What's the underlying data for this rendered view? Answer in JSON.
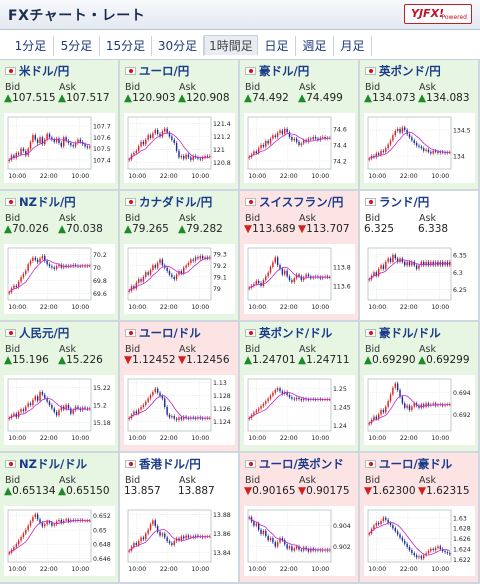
{
  "header": {
    "title": "FXチャート・レート",
    "logo": "YJFX!",
    "logo_sub": "Powered"
  },
  "tabs": [
    "1分足",
    "5分足",
    "15分足",
    "30分足",
    "1時間足",
    "日足",
    "週足",
    "月足"
  ],
  "active_tab": "1時間足",
  "labels": {
    "bid": "Bid",
    "ask": "Ask"
  },
  "pairs": [
    {
      "name": "米ドル/円",
      "bid": "107.515",
      "ask": "107.517",
      "direction": "up",
      "bid_arrow": "▲",
      "ask_arrow": "▲"
    },
    {
      "name": "ユーロ/円",
      "bid": "120.903",
      "ask": "120.908",
      "direction": "up",
      "bid_arrow": "▲",
      "ask_arrow": "▲"
    },
    {
      "name": "豪ドル/円",
      "bid": "74.492",
      "ask": "74.499",
      "direction": "up",
      "bid_arrow": "▲",
      "ask_arrow": "▲"
    },
    {
      "name": "英ポンド/円",
      "bid": "134.073",
      "ask": "134.083",
      "direction": "up",
      "bid_arrow": "▲",
      "ask_arrow": "▲"
    },
    {
      "name": "NZドル/円",
      "bid": "70.026",
      "ask": "70.038",
      "direction": "up",
      "bid_arrow": "▲",
      "ask_arrow": "▲"
    },
    {
      "name": "カナダドル/円",
      "bid": "79.265",
      "ask": "79.282",
      "direction": "up",
      "bid_arrow": "▲",
      "ask_arrow": "▲"
    },
    {
      "name": "スイスフラン/円",
      "bid": "113.689",
      "ask": "113.707",
      "direction": "down",
      "bid_arrow": "▼",
      "ask_arrow": "▼"
    },
    {
      "name": "ランド/円",
      "bid": "6.325",
      "ask": "6.338",
      "direction": "flat",
      "bid_arrow": "",
      "ask_arrow": ""
    },
    {
      "name": "人民元/円",
      "bid": "15.196",
      "ask": "15.226",
      "direction": "up",
      "bid_arrow": "▲",
      "ask_arrow": "▲"
    },
    {
      "name": "ユーロ/ドル",
      "bid": "1.12452",
      "ask": "1.12456",
      "direction": "down",
      "bid_arrow": "▼",
      "ask_arrow": "▼"
    },
    {
      "name": "英ポンド/ドル",
      "bid": "1.24701",
      "ask": "1.24711",
      "direction": "up",
      "bid_arrow": "▲",
      "ask_arrow": "▲"
    },
    {
      "name": "豪ドル/ドル",
      "bid": "0.69290",
      "ask": "0.69299",
      "direction": "up",
      "bid_arrow": "▲",
      "ask_arrow": "▲"
    },
    {
      "name": "NZドル/ドル",
      "bid": "0.65134",
      "ask": "0.65150",
      "direction": "up",
      "bid_arrow": "▲",
      "ask_arrow": "▲"
    },
    {
      "name": "香港ドル/円",
      "bid": "13.857",
      "ask": "13.887",
      "direction": "flat",
      "bid_arrow": "",
      "ask_arrow": ""
    },
    {
      "name": "ユーロ/英ポンド",
      "bid": "0.90165",
      "ask": "0.90175",
      "direction": "down",
      "bid_arrow": "▼",
      "ask_arrow": "▼"
    },
    {
      "name": "ユーロ/豪ドル",
      "bid": "1.62300",
      "ask": "1.62315",
      "direction": "down",
      "bid_arrow": "▼",
      "ask_arrow": "▼"
    }
  ],
  "colors": {
    "up_bg": "#e6f6e2",
    "down_bg": "#fde4e4",
    "flat_bg": "#ffffff",
    "candle_up": "#d81e1e",
    "candle_down": "#1a2a9a",
    "ma_line": "#c02ad0"
  },
  "chart_data": [
    {
      "type": "candlestick",
      "title": "米ドル/円",
      "x_ticks": [
        "10:00",
        "22:00",
        "10:00"
      ],
      "y_ticks": [
        "107.7",
        "107.6",
        "107.5",
        "107.4"
      ],
      "ylim": [
        107.32,
        107.78
      ],
      "closes": [
        107.4,
        107.44,
        107.42,
        107.46,
        107.45,
        107.5,
        107.48,
        107.44,
        107.5,
        107.56,
        107.62,
        107.58,
        107.55,
        107.6,
        107.54,
        107.58,
        107.63,
        107.6,
        107.58,
        107.56,
        107.59,
        107.55,
        107.52,
        107.6,
        107.57,
        107.55,
        107.53,
        107.52,
        107.55,
        107.58,
        107.56,
        107.54,
        107.52,
        107.51,
        107.52
      ]
    },
    {
      "type": "candlestick",
      "title": "ユーロ/円",
      "x_ticks": [
        "10:00",
        "22:00",
        "10:00"
      ],
      "y_ticks": [
        "121.4",
        "121.2",
        "121",
        "120.8"
      ],
      "ylim": [
        120.7,
        121.5
      ],
      "closes": [
        120.85,
        120.92,
        120.95,
        120.98,
        121.05,
        121.12,
        121.08,
        121.15,
        121.22,
        121.18,
        121.25,
        121.3,
        121.24,
        121.2,
        121.28,
        121.32,
        121.26,
        121.2,
        121.15,
        121.1,
        120.98,
        120.88,
        120.9,
        120.86,
        120.92,
        120.88,
        120.84,
        120.9,
        120.88,
        120.86,
        120.85,
        120.88,
        120.9,
        120.89,
        120.9
      ]
    },
    {
      "type": "candlestick",
      "title": "豪ドル/円",
      "x_ticks": [
        "10:00",
        "22:00",
        "10:00"
      ],
      "y_ticks": [
        "74.6",
        "74.4",
        "74.2"
      ],
      "ylim": [
        74.1,
        74.75
      ],
      "closes": [
        74.25,
        74.28,
        74.32,
        74.3,
        74.36,
        74.4,
        74.38,
        74.45,
        74.42,
        74.48,
        74.52,
        74.5,
        74.55,
        74.58,
        74.54,
        74.6,
        74.56,
        74.5,
        74.46,
        74.48,
        74.44,
        74.4,
        74.42,
        74.46,
        74.44,
        74.48,
        74.47,
        74.5,
        74.48,
        74.46,
        74.49,
        74.5,
        74.48,
        74.49,
        74.49
      ]
    },
    {
      "type": "candlestick",
      "title": "英ポンド/円",
      "x_ticks": [
        "10:00",
        "22:00",
        "10:00"
      ],
      "y_ticks": [
        "134.5",
        "134"
      ],
      "ylim": [
        133.75,
        134.75
      ],
      "closes": [
        133.95,
        134.0,
        133.98,
        134.05,
        134.02,
        134.1,
        134.08,
        134.15,
        134.22,
        134.3,
        134.4,
        134.48,
        134.52,
        134.45,
        134.55,
        134.5,
        134.42,
        134.36,
        134.3,
        134.25,
        134.2,
        134.18,
        134.15,
        134.1,
        134.12,
        134.08,
        134.05,
        134.1,
        134.08,
        134.06,
        134.08,
        134.07,
        134.06,
        134.07,
        134.07
      ]
    },
    {
      "type": "candlestick",
      "title": "NZドル/円",
      "x_ticks": [
        "10:00",
        "22:00",
        "10:00"
      ],
      "y_ticks": [
        "70.2",
        "70",
        "69.8",
        "69.6"
      ],
      "ylim": [
        69.5,
        70.3
      ],
      "closes": [
        69.62,
        69.68,
        69.72,
        69.7,
        69.78,
        69.85,
        69.9,
        69.95,
        70.05,
        70.1,
        70.15,
        70.12,
        70.08,
        70.14,
        70.18,
        70.1,
        70.05,
        70.02,
        70.0,
        69.98,
        70.02,
        70.04,
        70.0,
        70.03,
        70.01,
        70.03,
        70.02,
        70.04,
        70.03,
        70.02,
        70.02,
        70.03,
        70.02,
        70.03,
        70.03
      ]
    },
    {
      "type": "candlestick",
      "title": "カナダドル/円",
      "x_ticks": [
        "10:00",
        "22:00",
        "10:00"
      ],
      "y_ticks": [
        "79.3",
        "79.2",
        "79.1",
        "79"
      ],
      "ylim": [
        78.9,
        79.35
      ],
      "closes": [
        78.98,
        79.02,
        79.0,
        79.05,
        79.08,
        79.06,
        79.1,
        79.14,
        79.12,
        79.16,
        79.2,
        79.18,
        79.22,
        79.25,
        79.2,
        79.18,
        79.15,
        79.12,
        79.1,
        79.08,
        79.12,
        79.15,
        79.13,
        79.18,
        79.2,
        79.22,
        79.25,
        79.24,
        79.27,
        79.26,
        79.28,
        79.26,
        79.27,
        79.26,
        79.27
      ]
    },
    {
      "type": "candlestick",
      "title": "スイスフラン/円",
      "x_ticks": [
        "10:00",
        "22:00",
        "10:00"
      ],
      "y_ticks": [
        "113.8",
        "113.6"
      ],
      "ylim": [
        113.45,
        114.0
      ],
      "closes": [
        113.58,
        113.6,
        113.62,
        113.65,
        113.63,
        113.6,
        113.66,
        113.7,
        113.74,
        113.8,
        113.85,
        113.9,
        113.82,
        113.78,
        113.72,
        113.76,
        113.7,
        113.66,
        113.64,
        113.68,
        113.72,
        113.7,
        113.66,
        113.69,
        113.72,
        113.7,
        113.68,
        113.69,
        113.7,
        113.69,
        113.68,
        113.69,
        113.7,
        113.69,
        113.69
      ]
    },
    {
      "type": "candlestick",
      "title": "ランド/円",
      "x_ticks": [
        "10:00",
        "22:00",
        "10:00"
      ],
      "y_ticks": [
        "6.35",
        "6.3",
        "6.25"
      ],
      "ylim": [
        6.22,
        6.37
      ],
      "closes": [
        6.28,
        6.29,
        6.3,
        6.29,
        6.31,
        6.32,
        6.31,
        6.33,
        6.34,
        6.33,
        6.35,
        6.34,
        6.33,
        6.34,
        6.33,
        6.32,
        6.33,
        6.32,
        6.33,
        6.32,
        6.31,
        6.32,
        6.33,
        6.32,
        6.33,
        6.32,
        6.33,
        6.32,
        6.33,
        6.32,
        6.33,
        6.32,
        6.33,
        6.32,
        6.33
      ]
    },
    {
      "type": "candlestick",
      "title": "人民元/円",
      "x_ticks": [
        "10:00",
        "22:00",
        "10:00"
      ],
      "y_ticks": [
        "15.22",
        "15.2",
        "15.18"
      ],
      "ylim": [
        15.17,
        15.23
      ],
      "closes": [
        15.185,
        15.188,
        15.19,
        15.186,
        15.192,
        15.195,
        15.193,
        15.198,
        15.202,
        15.2,
        15.206,
        15.21,
        15.205,
        15.215,
        15.212,
        15.208,
        15.204,
        15.2,
        15.196,
        15.192,
        15.188,
        15.194,
        15.198,
        15.195,
        15.2,
        15.196,
        15.19,
        15.194,
        15.198,
        15.196,
        15.194,
        15.197,
        15.196,
        15.195,
        15.196
      ]
    },
    {
      "type": "candlestick",
      "title": "ユーロ/ドル",
      "x_ticks": [
        "10:00",
        "22:00",
        "10:00"
      ],
      "y_ticks": [
        "1.13",
        "1.128",
        "1.126",
        "1.124"
      ],
      "ylim": [
        1.1225,
        1.1305
      ],
      "closes": [
        1.1245,
        1.125,
        1.1255,
        1.1252,
        1.1258,
        1.1262,
        1.1265,
        1.127,
        1.1275,
        1.128,
        1.1285,
        1.129,
        1.1284,
        1.1279,
        1.1275,
        1.1262,
        1.125,
        1.1246,
        1.1248,
        1.1244,
        1.1242,
        1.1246,
        1.1243,
        1.1247,
        1.1245,
        1.1244,
        1.1246,
        1.1245,
        1.1244,
        1.1246,
        1.1245,
        1.1244,
        1.1245,
        1.1245,
        1.1245
      ]
    },
    {
      "type": "candlestick",
      "title": "英ポンド/ドル",
      "x_ticks": [
        "10:00",
        "22:00",
        "10:00"
      ],
      "y_ticks": [
        "1.25",
        "1.245",
        "1.24"
      ],
      "ylim": [
        1.2385,
        1.2525
      ],
      "closes": [
        1.242,
        1.2428,
        1.2435,
        1.244,
        1.2445,
        1.2452,
        1.2458,
        1.2465,
        1.2472,
        1.248,
        1.2488,
        1.2495,
        1.25,
        1.2492,
        1.2485,
        1.249,
        1.2482,
        1.2476,
        1.2472,
        1.247,
        1.2474,
        1.2471,
        1.2468,
        1.2472,
        1.247,
        1.2469,
        1.2471,
        1.247,
        1.2469,
        1.2471,
        1.247,
        1.247,
        1.247,
        1.247,
        1.247
      ]
    },
    {
      "type": "candlestick",
      "title": "豪ドル/ドル",
      "x_ticks": [
        "10:00",
        "22:00",
        "10:00"
      ],
      "y_ticks": [
        "0.694",
        "0.692"
      ],
      "ylim": [
        0.6905,
        0.6952
      ],
      "closes": [
        0.6912,
        0.6915,
        0.6918,
        0.6916,
        0.692,
        0.6924,
        0.6922,
        0.6927,
        0.6932,
        0.6938,
        0.6944,
        0.6948,
        0.6942,
        0.6936,
        0.693,
        0.6926,
        0.6928,
        0.6924,
        0.6927,
        0.693,
        0.6928,
        0.6926,
        0.6929,
        0.6927,
        0.693,
        0.6928,
        0.6929,
        0.693,
        0.6928,
        0.6929,
        0.6929,
        0.6928,
        0.6929,
        0.6929,
        0.6929
      ]
    },
    {
      "type": "candlestick",
      "title": "NZドル/ドル",
      "x_ticks": [
        "10:00",
        "22:00",
        "10:00"
      ],
      "y_ticks": [
        "0.652",
        "0.65",
        "0.648",
        "0.646"
      ],
      "ylim": [
        0.6455,
        0.6528
      ],
      "closes": [
        0.6468,
        0.6472,
        0.6476,
        0.648,
        0.6485,
        0.649,
        0.6495,
        0.65,
        0.6506,
        0.6512,
        0.6518,
        0.6522,
        0.6515,
        0.651,
        0.6505,
        0.6508,
        0.6512,
        0.651,
        0.6506,
        0.6508,
        0.6512,
        0.6514,
        0.651,
        0.6513,
        0.6515,
        0.6512,
        0.6514,
        0.6513,
        0.6514,
        0.6513,
        0.6514,
        0.6513,
        0.6513,
        0.6513,
        0.6513
      ]
    },
    {
      "type": "candlestick",
      "title": "香港ドル/円",
      "x_ticks": [
        "10:00",
        "22:00",
        "10:00"
      ],
      "y_ticks": [
        "13.88",
        "13.86",
        "13.84"
      ],
      "ylim": [
        13.83,
        13.885
      ],
      "closes": [
        13.842,
        13.846,
        13.85,
        13.848,
        13.852,
        13.856,
        13.854,
        13.86,
        13.864,
        13.87,
        13.874,
        13.868,
        13.862,
        13.858,
        13.86,
        13.856,
        13.852,
        13.85,
        13.848,
        13.852,
        13.855,
        13.853,
        13.857,
        13.855,
        13.858,
        13.856,
        13.857,
        13.856,
        13.858,
        13.857,
        13.857,
        13.856,
        13.857,
        13.857,
        13.857
      ]
    },
    {
      "type": "candlestick",
      "title": "ユーロ/英ポンド",
      "x_ticks": [
        "10:00",
        "22:00",
        "10:00"
      ],
      "y_ticks": [
        "0.904",
        "0.902"
      ],
      "ylim": [
        0.9005,
        0.9055
      ],
      "closes": [
        0.9048,
        0.9044,
        0.904,
        0.9042,
        0.9036,
        0.9032,
        0.9035,
        0.903,
        0.9026,
        0.9028,
        0.9024,
        0.902,
        0.9024,
        0.9028,
        0.9026,
        0.9022,
        0.9018,
        0.902,
        0.9016,
        0.9018,
        0.902,
        0.9017,
        0.9016,
        0.9019,
        0.9017,
        0.9015,
        0.9018,
        0.9016,
        0.9017,
        0.9016,
        0.9017,
        0.9016,
        0.9017,
        0.9016,
        0.9017
      ]
    },
    {
      "type": "candlestick",
      "title": "ユーロ/豪ドル",
      "x_ticks": [
        "10:00",
        "22:00",
        "10:00"
      ],
      "y_ticks": [
        "1.63",
        "1.628",
        "1.626",
        "1.624",
        "1.622"
      ],
      "ylim": [
        1.6215,
        1.6315
      ],
      "closes": [
        1.627,
        1.6278,
        1.6285,
        1.629,
        1.6288,
        1.6294,
        1.63,
        1.6296,
        1.629,
        1.6286,
        1.628,
        1.6274,
        1.6268,
        1.6262,
        1.6256,
        1.625,
        1.6244,
        1.6238,
        1.6232,
        1.6228,
        1.6224,
        1.6226,
        1.6222,
        1.6228,
        1.6232,
        1.6236,
        1.624,
        1.6238,
        1.6242,
        1.6245,
        1.624,
        1.6236,
        1.6234,
        1.6232,
        1.623
      ]
    }
  ]
}
